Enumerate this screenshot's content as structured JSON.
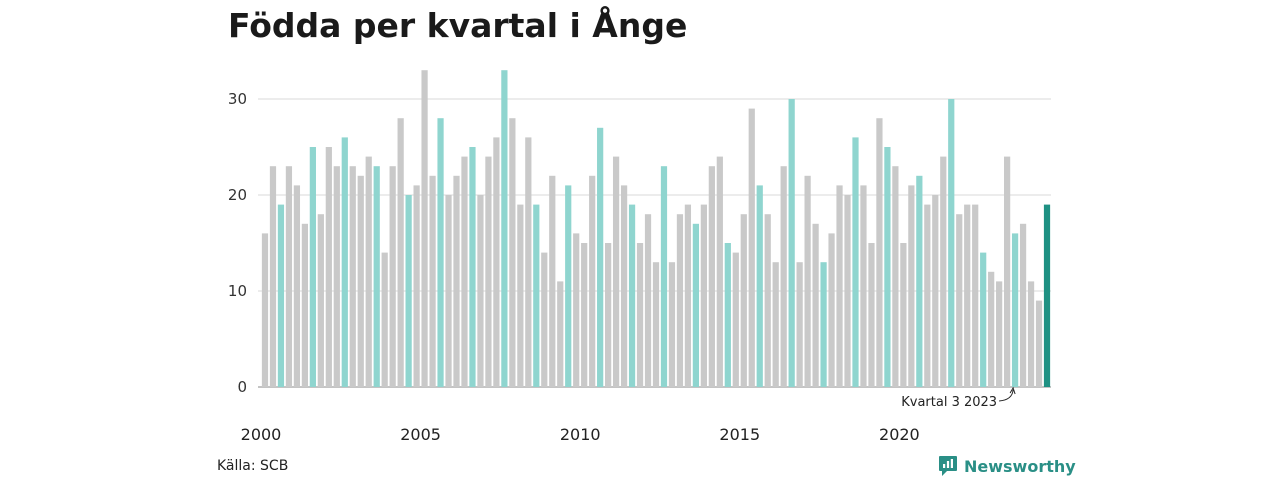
{
  "chart_data": {
    "type": "bar",
    "title": "Födda per kvartal i Ånge",
    "xlabel": "",
    "ylabel": "",
    "ylim": [
      0,
      35
    ],
    "yticks": [
      0,
      10,
      20,
      30
    ],
    "xtick_labels": [
      "2000",
      "2005",
      "2010",
      "2015",
      "2020"
    ],
    "grid": true,
    "start_year": 2000,
    "highlight_quarter": 3,
    "values": [
      16,
      23,
      19,
      23,
      21,
      17,
      25,
      18,
      25,
      23,
      26,
      23,
      22,
      24,
      23,
      14,
      23,
      28,
      20,
      21,
      33,
      22,
      28,
      20,
      22,
      24,
      25,
      20,
      24,
      26,
      33,
      28,
      19,
      26,
      19,
      14,
      22,
      11,
      21,
      16,
      15,
      22,
      27,
      15,
      24,
      21,
      19,
      15,
      18,
      13,
      23,
      13,
      18,
      19,
      17,
      19,
      23,
      24,
      15,
      14,
      18,
      29,
      21,
      18,
      13,
      23,
      30,
      13,
      22,
      17,
      13,
      16,
      21,
      20,
      26,
      21,
      15,
      28,
      25,
      23,
      15,
      21,
      22,
      19,
      20,
      24,
      30,
      18,
      19,
      19,
      14,
      12,
      11,
      24,
      16,
      17,
      11,
      9,
      19
    ],
    "annotation": "Kvartal 3 2023",
    "colors": {
      "default": "#c9c9c9",
      "highlight": "#8fd5cf",
      "latest": "#1f9183",
      "grid": "#d9d9d9"
    }
  },
  "source": "Källa: SCB",
  "brand": {
    "name": "Newsworthy",
    "icon": "newsworthy-logo-icon"
  }
}
